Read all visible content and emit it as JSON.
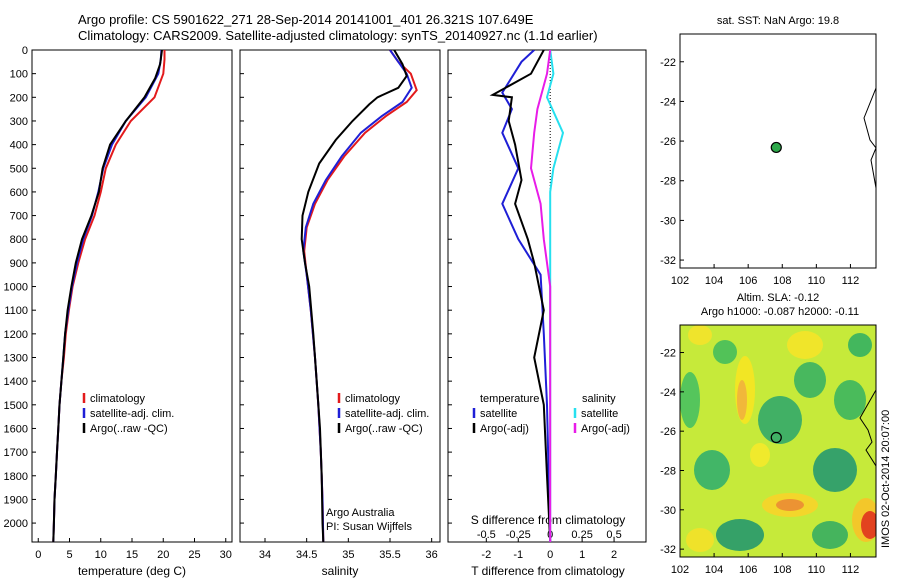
{
  "header": {
    "line1": "Argo profile: CS 5901622_271 28-Sep-2014 20141001_401 26.321S 107.649E",
    "line2": "Climatology: CARS2009. Satellite-adjusted climatology: synTS_20140927.nc (1.1d earlier)"
  },
  "stamp": "IMOS 02-Oct-2014 20:07:00",
  "colors": {
    "climatology": "#e31a1c",
    "satellite": "#1f1fd6",
    "argo": "#000000",
    "magenta": "#e81ce8",
    "cyan": "#26e0ef",
    "dot": "#2da84a"
  },
  "chart_data": [
    {
      "type": "line",
      "id": "temperature",
      "xlabel": "temperature (deg C)",
      "xlim": [
        -1,
        31
      ],
      "xticks": [
        0,
        5,
        10,
        15,
        20,
        25,
        30
      ],
      "ylim": [
        2080,
        0
      ],
      "yticks": [
        0,
        100,
        200,
        300,
        400,
        500,
        600,
        700,
        800,
        900,
        1000,
        1100,
        1200,
        1300,
        1400,
        1500,
        1600,
        1700,
        1800,
        1900,
        2000
      ],
      "legend": [
        "climatology",
        "satellite-adj. clim.",
        "Argo(..raw -QC)"
      ],
      "series": [
        {
          "name": "climatology",
          "color": "red",
          "points": [
            [
              20.2,
              0
            ],
            [
              20.2,
              40
            ],
            [
              20,
              100
            ],
            [
              18.6,
              200
            ],
            [
              14.8,
              300
            ],
            [
              12.4,
              400
            ],
            [
              10.8,
              500
            ],
            [
              10,
              600
            ],
            [
              9,
              700
            ],
            [
              7.5,
              800
            ],
            [
              6.4,
              900
            ],
            [
              5.5,
              1000
            ],
            [
              4.9,
              1100
            ],
            [
              4.4,
              1200
            ],
            [
              4.1,
              1300
            ],
            [
              3.7,
              1400
            ],
            [
              3.4,
              1500
            ],
            [
              3.2,
              1600
            ],
            [
              3,
              1700
            ],
            [
              2.8,
              1800
            ],
            [
              2.6,
              1900
            ],
            [
              2.5,
              2000
            ],
            [
              2.4,
              2080
            ]
          ]
        },
        {
          "name": "satellite-adj. clim.",
          "color": "blue",
          "points": [
            [
              19.7,
              0
            ],
            [
              19.6,
              40
            ],
            [
              19.2,
              100
            ],
            [
              17.2,
              200
            ],
            [
              14,
              300
            ],
            [
              11.8,
              400
            ],
            [
              10.4,
              500
            ],
            [
              9.6,
              600
            ],
            [
              8.6,
              700
            ],
            [
              7.2,
              800
            ],
            [
              6.2,
              900
            ],
            [
              5.4,
              1000
            ],
            [
              4.8,
              1100
            ],
            [
              4.3,
              1200
            ],
            [
              4,
              1300
            ],
            [
              3.7,
              1400
            ],
            [
              3.4,
              1500
            ],
            [
              3.2,
              1600
            ],
            [
              3,
              1700
            ],
            [
              2.8,
              1800
            ],
            [
              2.6,
              1900
            ],
            [
              2.5,
              2000
            ],
            [
              2.4,
              2080
            ]
          ]
        },
        {
          "name": "Argo(..raw -QC)",
          "color": "black",
          "points": [
            [
              19.8,
              0
            ],
            [
              19.5,
              60
            ],
            [
              18.7,
              120
            ],
            [
              17,
              200
            ],
            [
              14,
              300
            ],
            [
              11.5,
              400
            ],
            [
              10.3,
              500
            ],
            [
              9.7,
              600
            ],
            [
              8.5,
              700
            ],
            [
              7,
              800
            ],
            [
              6,
              900
            ],
            [
              5.3,
              1000
            ],
            [
              4.7,
              1100
            ],
            [
              4.3,
              1200
            ],
            [
              4,
              1300
            ],
            [
              3.7,
              1400
            ],
            [
              3.4,
              1500
            ],
            [
              3.2,
              1600
            ],
            [
              3,
              1700
            ],
            [
              2.8,
              1800
            ],
            [
              2.6,
              1900
            ],
            [
              2.5,
              2000
            ],
            [
              2.4,
              2080
            ]
          ]
        }
      ]
    },
    {
      "type": "line",
      "id": "salinity",
      "xlabel": "salinity",
      "xlim": [
        33.7,
        36.1
      ],
      "xticks": [
        34,
        34.5,
        35,
        35.5,
        36
      ],
      "ylim": [
        2080,
        0
      ],
      "legend": [
        "climatology",
        "satellite-adj. clim.",
        "Argo(..raw -QC)"
      ],
      "annotations": [
        "Argo Australia",
        "PI: Susan Wijffels"
      ],
      "series": [
        {
          "name": "climatology",
          "color": "red",
          "points": [
            [
              35.5,
              0
            ],
            [
              35.6,
              50
            ],
            [
              35.75,
              100
            ],
            [
              35.82,
              170
            ],
            [
              35.7,
              220
            ],
            [
              35.45,
              280
            ],
            [
              35.2,
              350
            ],
            [
              34.95,
              450
            ],
            [
              34.75,
              550
            ],
            [
              34.6,
              650
            ],
            [
              34.5,
              750
            ],
            [
              34.47,
              850
            ],
            [
              34.5,
              950
            ],
            [
              34.55,
              1100
            ],
            [
              34.6,
              1300
            ],
            [
              34.64,
              1500
            ],
            [
              34.67,
              1700
            ],
            [
              34.69,
              1900
            ],
            [
              34.7,
              2080
            ]
          ]
        },
        {
          "name": "satellite-adj. clim.",
          "color": "blue",
          "points": [
            [
              35.5,
              0
            ],
            [
              35.6,
              50
            ],
            [
              35.7,
              100
            ],
            [
              35.76,
              160
            ],
            [
              35.65,
              220
            ],
            [
              35.4,
              280
            ],
            [
              35.15,
              350
            ],
            [
              34.92,
              450
            ],
            [
              34.73,
              550
            ],
            [
              34.58,
              650
            ],
            [
              34.49,
              750
            ],
            [
              34.46,
              850
            ],
            [
              34.5,
              950
            ],
            [
              34.55,
              1100
            ],
            [
              34.6,
              1300
            ],
            [
              34.64,
              1500
            ],
            [
              34.67,
              1700
            ],
            [
              34.69,
              1900
            ],
            [
              34.7,
              2080
            ]
          ]
        },
        {
          "name": "Argo(..raw -QC)",
          "color": "black",
          "points": [
            [
              35.55,
              0
            ],
            [
              35.65,
              60
            ],
            [
              35.7,
              110
            ],
            [
              35.6,
              160
            ],
            [
              35.35,
              200
            ],
            [
              35.25,
              230
            ],
            [
              35.05,
              300
            ],
            [
              34.85,
              380
            ],
            [
              34.65,
              480
            ],
            [
              34.52,
              600
            ],
            [
              34.45,
              700
            ],
            [
              34.44,
              800
            ],
            [
              34.48,
              900
            ],
            [
              34.53,
              1000
            ],
            [
              34.58,
              1200
            ],
            [
              34.62,
              1400
            ],
            [
              34.66,
              1600
            ],
            [
              34.68,
              1800
            ],
            [
              34.69,
              2000
            ],
            [
              34.7,
              2080
            ]
          ]
        }
      ]
    },
    {
      "type": "line",
      "id": "differences",
      "xlabel_top": "S difference from climatology",
      "xticks_top": [
        "-0.5",
        "-0.25",
        "0",
        "0.25",
        "0.5"
      ],
      "xlabel": "T difference from climatology",
      "xlim": [
        -3.2,
        3
      ],
      "xticks": [
        -2,
        -1,
        0,
        1,
        2
      ],
      "ylim": [
        2080,
        0
      ],
      "legend_temperature": {
        "title": "temperature",
        "items": [
          "satellite",
          "Argo(-adj)"
        ]
      },
      "legend_salinity": {
        "title": "salinity",
        "items": [
          "satellite",
          "Argo(-adj)"
        ]
      },
      "series": [
        {
          "name": "temperature satellite",
          "color": "blue",
          "points": [
            [
              -0.5,
              0
            ],
            [
              -0.9,
              50
            ],
            [
              -1.5,
              180
            ],
            [
              -1.2,
              250
            ],
            [
              -1.5,
              350
            ],
            [
              -1,
              500
            ],
            [
              -1.5,
              650
            ],
            [
              -1,
              800
            ],
            [
              -0.3,
              950
            ],
            [
              -0.2,
              1200
            ],
            [
              -0.1,
              1500
            ],
            [
              0,
              2080
            ]
          ]
        },
        {
          "name": "temperature Argo(-adj)",
          "color": "black",
          "points": [
            [
              -0.2,
              0
            ],
            [
              -0.6,
              100
            ],
            [
              -1.8,
              190
            ],
            [
              -1.2,
              200
            ],
            [
              -1.3,
              300
            ],
            [
              -1.1,
              400
            ],
            [
              -0.9,
              550
            ],
            [
              -1.1,
              650
            ],
            [
              -0.7,
              800
            ],
            [
              -0.5,
              900
            ],
            [
              -0.2,
              1100
            ],
            [
              -0.5,
              1300
            ],
            [
              -0.2,
              1500
            ],
            [
              -0.1,
              1800
            ],
            [
              0,
              2080
            ]
          ]
        },
        {
          "name": "salinity satellite",
          "color": "cyan",
          "points": [
            [
              0,
              0
            ],
            [
              0.1,
              100
            ],
            [
              -0.1,
              200
            ],
            [
              0.4,
              350
            ],
            [
              0.1,
              500
            ],
            [
              0,
              600
            ],
            [
              0,
              800
            ],
            [
              0,
              1200
            ],
            [
              0,
              2080
            ]
          ]
        },
        {
          "name": "salinity Argo(-adj)",
          "color": "magenta",
          "points": [
            [
              0,
              0
            ],
            [
              -0.1,
              100
            ],
            [
              -0.4,
              250
            ],
            [
              -0.5,
              350
            ],
            [
              -0.6,
              500
            ],
            [
              -0.3,
              650
            ],
            [
              -0.2,
              800
            ],
            [
              0,
              1000
            ],
            [
              0,
              2080
            ]
          ]
        }
      ]
    },
    {
      "type": "scatter",
      "id": "sst-map",
      "title": "sat. SST: NaN Argo: 19.8",
      "xlim": [
        102,
        113.5
      ],
      "xticks": [
        102,
        104,
        106,
        108,
        110,
        112
      ],
      "ylim": [
        -32.4,
        -20.6
      ],
      "yticks": [
        -22,
        -24,
        -26,
        -28,
        -30,
        -32
      ],
      "points": [
        {
          "x": 107.649,
          "y": -26.321
        }
      ]
    },
    {
      "type": "heatmap",
      "id": "sla-map",
      "title_line1": "Altim. SLA: -0.12",
      "title_line2": "Argo h1000: -0.087 h2000: -0.11",
      "xlim": [
        102,
        113.5
      ],
      "xticks": [
        102,
        104,
        106,
        108,
        110,
        112
      ],
      "ylim": [
        -32.4,
        -20.6
      ],
      "yticks": [
        -22,
        -24,
        -26,
        -28,
        -30,
        -32
      ],
      "points": [
        {
          "x": 107.649,
          "y": -26.321
        }
      ]
    }
  ]
}
